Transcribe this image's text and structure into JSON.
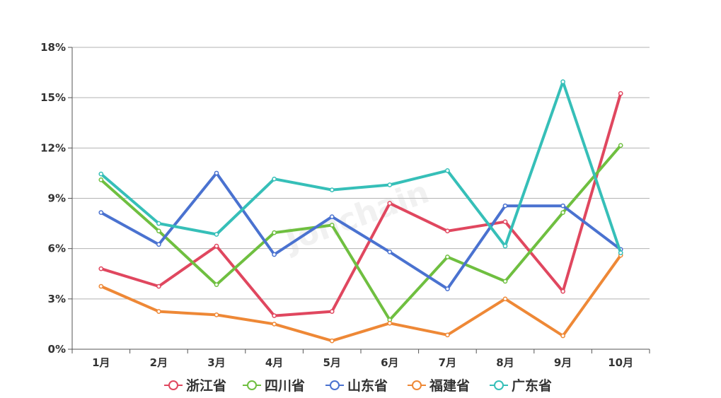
{
  "chart_data": {
    "type": "line",
    "categories": [
      "1月",
      "2月",
      "3月",
      "4月",
      "5月",
      "6月",
      "7月",
      "8月",
      "9月",
      "10月"
    ],
    "y_ticks": [
      "0%",
      "3%",
      "6%",
      "9%",
      "12%",
      "15%",
      "18%"
    ],
    "ylim": [
      0,
      18
    ],
    "grid": true,
    "legend_position": "bottom",
    "watermark": "Jonchain",
    "series": [
      {
        "name": "浙江省",
        "color": "#e0475f",
        "values": [
          4.8,
          3.75,
          6.15,
          2.0,
          2.25,
          8.7,
          7.05,
          7.6,
          3.45,
          15.25
        ]
      },
      {
        "name": "四川省",
        "color": "#6fbf40",
        "values": [
          10.1,
          7.05,
          3.85,
          6.95,
          7.4,
          1.75,
          5.5,
          4.05,
          8.15,
          12.15
        ]
      },
      {
        "name": "山东省",
        "color": "#4a72d0",
        "values": [
          8.15,
          6.25,
          10.5,
          5.65,
          7.9,
          5.8,
          3.6,
          8.55,
          8.55,
          5.95
        ]
      },
      {
        "name": "福建省",
        "color": "#ee8836",
        "values": [
          3.75,
          2.25,
          2.05,
          1.5,
          0.5,
          1.55,
          0.85,
          3.0,
          0.8,
          5.6
        ]
      },
      {
        "name": "广东省",
        "color": "#36bfb8",
        "values": [
          10.45,
          7.5,
          6.85,
          10.15,
          9.5,
          9.8,
          10.65,
          6.15,
          15.95,
          5.75
        ]
      }
    ]
  }
}
